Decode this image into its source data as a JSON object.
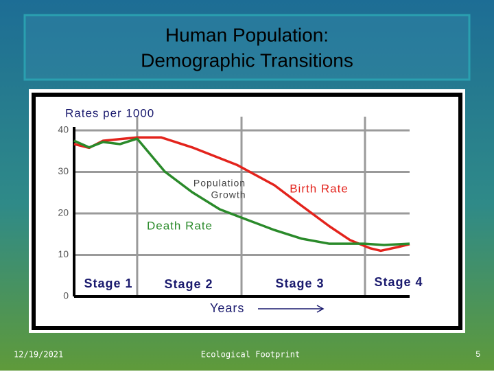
{
  "slide": {
    "title_lines": [
      "Human Population:",
      "Demographic Transitions"
    ],
    "date": "12/19/2021",
    "footer": "Ecological Footprint",
    "page": "5"
  },
  "chart_data": {
    "type": "line",
    "y_label": "Rates per 1000",
    "x_label": "Years",
    "xlim": [
      0,
      100
    ],
    "ylim": [
      0,
      40
    ],
    "yticks": [
      0,
      10,
      20,
      30,
      40
    ],
    "grid": true,
    "stage_boundaries": [
      18.8,
      49.9,
      86.7
    ],
    "series": [
      {
        "name": "Birth Rate",
        "color": "#e3231c",
        "x": [
          0,
          4.5,
          8.6,
          18.8,
          26,
          35.2,
          48.5,
          59.7,
          67.9,
          76.1,
          82.2,
          88.3,
          91.4,
          96.5,
          100
        ],
        "values": [
          36.7,
          35.8,
          37.5,
          38.3,
          38.3,
          35.9,
          31.7,
          26.8,
          21.8,
          16.9,
          13.6,
          11.6,
          11,
          11.9,
          12.6
        ]
      },
      {
        "name": "Death Rate",
        "color": "#2a8a2a",
        "x": [
          0,
          4.5,
          8.6,
          13.7,
          18.8,
          27,
          35.2,
          43.4,
          51.5,
          59.7,
          67.9,
          76.1,
          86.3,
          92.4,
          100
        ],
        "values": [
          37.5,
          35.9,
          37.2,
          36.7,
          38,
          30.1,
          25.1,
          21,
          18.5,
          16,
          13.9,
          12.7,
          12.7,
          12.4,
          12.7
        ]
      }
    ],
    "annotations": [
      "Population",
      "Growth",
      "Stage 1",
      "Stage 2",
      "Stage 3",
      "Stage 4"
    ]
  }
}
